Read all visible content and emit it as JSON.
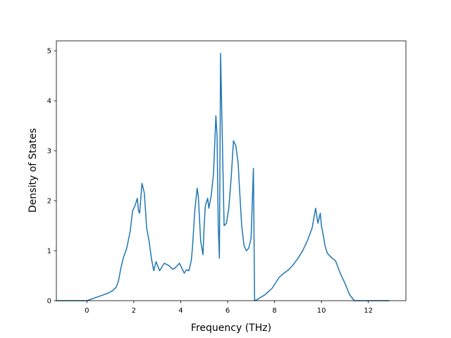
{
  "chart_data": {
    "type": "line",
    "title": "",
    "xlabel": "Frequency (THz)",
    "ylabel": "Density of States",
    "xlim": [
      -1.3,
      13.6
    ],
    "ylim": [
      0,
      5.2
    ],
    "xticks": [
      0,
      2,
      4,
      6,
      8,
      10,
      12
    ],
    "yticks": [
      0,
      1,
      2,
      3,
      4,
      5
    ],
    "grid": false,
    "legend": "none",
    "series": [
      {
        "color": "#1f77b4",
        "x": [
          -1.3,
          -0.5,
          0.0,
          0.3,
          0.6,
          0.9,
          1.1,
          1.25,
          1.35,
          1.45,
          1.55,
          1.7,
          1.85,
          1.95,
          2.05,
          2.15,
          2.2,
          2.25,
          2.35,
          2.45,
          2.55,
          2.65,
          2.75,
          2.85,
          2.95,
          3.1,
          3.3,
          3.5,
          3.65,
          3.75,
          3.85,
          3.95,
          4.05,
          4.15,
          4.25,
          4.35,
          4.45,
          4.5,
          4.6,
          4.7,
          4.75,
          4.85,
          4.95,
          5.0,
          5.05,
          5.15,
          5.2,
          5.3,
          5.4,
          5.5,
          5.55,
          5.6,
          5.65,
          5.7,
          5.85,
          5.95,
          6.05,
          6.15,
          6.25,
          6.35,
          6.45,
          6.5,
          6.6,
          6.7,
          6.8,
          6.9,
          7.0,
          7.1,
          7.15,
          7.25,
          7.35,
          7.6,
          7.9,
          8.2,
          8.4,
          8.6,
          8.8,
          9.0,
          9.2,
          9.4,
          9.6,
          9.75,
          9.85,
          9.95,
          10.0,
          10.1,
          10.15,
          10.25,
          10.35,
          10.45,
          10.6,
          10.8,
          11.0,
          11.2,
          11.4,
          11.5,
          11.6,
          11.7,
          11.85,
          11.95,
          12.05,
          12.6,
          12.9
        ],
        "y": [
          0.0,
          0.0,
          0.0,
          0.05,
          0.1,
          0.15,
          0.2,
          0.27,
          0.4,
          0.65,
          0.85,
          1.05,
          1.4,
          1.8,
          1.9,
          2.05,
          1.8,
          1.75,
          2.35,
          2.15,
          1.45,
          1.2,
          0.85,
          0.6,
          0.78,
          0.6,
          0.75,
          0.7,
          0.63,
          0.65,
          0.7,
          0.75,
          0.65,
          0.55,
          0.62,
          0.6,
          0.8,
          1.05,
          1.8,
          2.25,
          2.1,
          1.2,
          0.92,
          1.5,
          1.9,
          2.05,
          1.85,
          2.1,
          2.55,
          3.7,
          3.3,
          1.5,
          0.85,
          4.95,
          1.5,
          1.55,
          1.85,
          2.45,
          3.2,
          3.1,
          2.75,
          2.3,
          1.5,
          1.1,
          1.0,
          1.05,
          1.25,
          2.65,
          0.0,
          0.02,
          0.05,
          0.12,
          0.25,
          0.47,
          0.55,
          0.62,
          0.72,
          0.85,
          1.0,
          1.2,
          1.45,
          1.85,
          1.55,
          1.75,
          1.5,
          1.25,
          1.1,
          0.95,
          0.9,
          0.85,
          0.8,
          0.55,
          0.35,
          0.12,
          0.0,
          0.0,
          0.0,
          0.0,
          0.0,
          0.0,
          0.0,
          0.0,
          0.0
        ]
      }
    ]
  }
}
